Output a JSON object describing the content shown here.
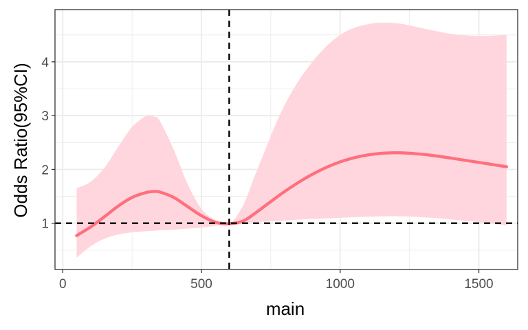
{
  "chart_data": {
    "type": "line",
    "title": "",
    "xlabel": "main",
    "ylabel": "Odds Ratio(95%CI)",
    "xlim": [
      -28,
      1640
    ],
    "ylim": [
      0.14,
      4.97
    ],
    "x_ticks": [
      0,
      500,
      1000,
      1500
    ],
    "x_tick_labels": [
      "0",
      "500",
      "1000",
      "1500"
    ],
    "y_ticks": [
      1,
      2,
      3,
      4
    ],
    "y_tick_labels": [
      "1",
      "2",
      "3",
      "4"
    ],
    "grid": true,
    "reference_lines": {
      "vertical_x": 600,
      "horizontal_y": 1
    },
    "colors": {
      "line": "#ff6f7d",
      "band": "#ffd6de",
      "reference": "#000000",
      "grid": "#ebebeb",
      "panel_border": "#333333"
    },
    "series": [
      {
        "x": [
          50,
          100,
          150,
          200,
          250,
          300,
          330,
          350,
          400,
          450,
          500,
          550,
          600,
          650,
          700,
          800,
          900,
          1000,
          1100,
          1200,
          1300,
          1400,
          1500,
          1600
        ],
        "y": [
          0.77,
          0.93,
          1.12,
          1.32,
          1.48,
          1.57,
          1.59,
          1.58,
          1.48,
          1.31,
          1.14,
          1.02,
          0.99,
          1.04,
          1.21,
          1.59,
          1.91,
          2.14,
          2.27,
          2.31,
          2.28,
          2.21,
          2.13,
          2.05
        ],
        "lower": [
          0.36,
          0.57,
          0.71,
          0.79,
          0.83,
          0.85,
          0.86,
          0.87,
          0.88,
          0.9,
          0.92,
          0.95,
          0.99,
          1.01,
          1.02,
          1.05,
          1.08,
          1.1,
          1.12,
          1.13,
          1.11,
          1.07,
          1.02,
          0.96
        ],
        "upper": [
          1.65,
          1.77,
          2.03,
          2.42,
          2.79,
          2.99,
          2.98,
          2.9,
          2.37,
          1.73,
          1.27,
          1.06,
          0.99,
          1.33,
          1.98,
          3.2,
          4.0,
          4.5,
          4.7,
          4.72,
          4.62,
          4.52,
          4.48,
          4.5
        ]
      }
    ]
  }
}
